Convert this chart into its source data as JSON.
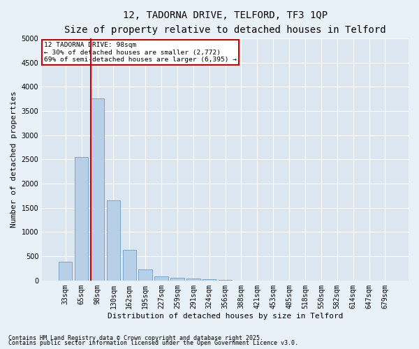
{
  "title1": "12, TADORNA DRIVE, TELFORD, TF3 1QP",
  "title2": "Size of property relative to detached houses in Telford",
  "xlabel": "Distribution of detached houses by size in Telford",
  "ylabel": "Number of detached properties",
  "categories": [
    "33sqm",
    "65sqm",
    "98sqm",
    "130sqm",
    "162sqm",
    "195sqm",
    "227sqm",
    "259sqm",
    "291sqm",
    "324sqm",
    "356sqm",
    "388sqm",
    "421sqm",
    "453sqm",
    "485sqm",
    "518sqm",
    "550sqm",
    "582sqm",
    "614sqm",
    "647sqm",
    "679sqm"
  ],
  "values": [
    380,
    2550,
    3760,
    1650,
    625,
    230,
    90,
    55,
    40,
    25,
    5,
    2,
    1,
    0,
    0,
    0,
    0,
    0,
    0,
    0,
    0
  ],
  "bar_color": "#b8cfe8",
  "bar_edge_color": "#6a9dc8",
  "highlight_color": "#cc0000",
  "highlight_bar_index": 2,
  "annotation_text": "12 TADORNA DRIVE: 98sqm\n← 30% of detached houses are smaller (2,772)\n69% of semi-detached houses are larger (6,395) →",
  "annotation_box_color": "#cc0000",
  "ylim": [
    0,
    5000
  ],
  "yticks": [
    0,
    500,
    1000,
    1500,
    2000,
    2500,
    3000,
    3500,
    4000,
    4500,
    5000
  ],
  "bg_color": "#dce6f0",
  "fig_bg_color": "#e8f0f8",
  "grid_color": "#ffffff",
  "footer1": "Contains HM Land Registry data © Crown copyright and database right 2025.",
  "footer2": "Contains public sector information licensed under the Open Government Licence v3.0.",
  "title_fontsize": 10,
  "subtitle_fontsize": 9,
  "tick_fontsize": 7,
  "ylabel_fontsize": 8,
  "xlabel_fontsize": 8,
  "footer_fontsize": 6
}
